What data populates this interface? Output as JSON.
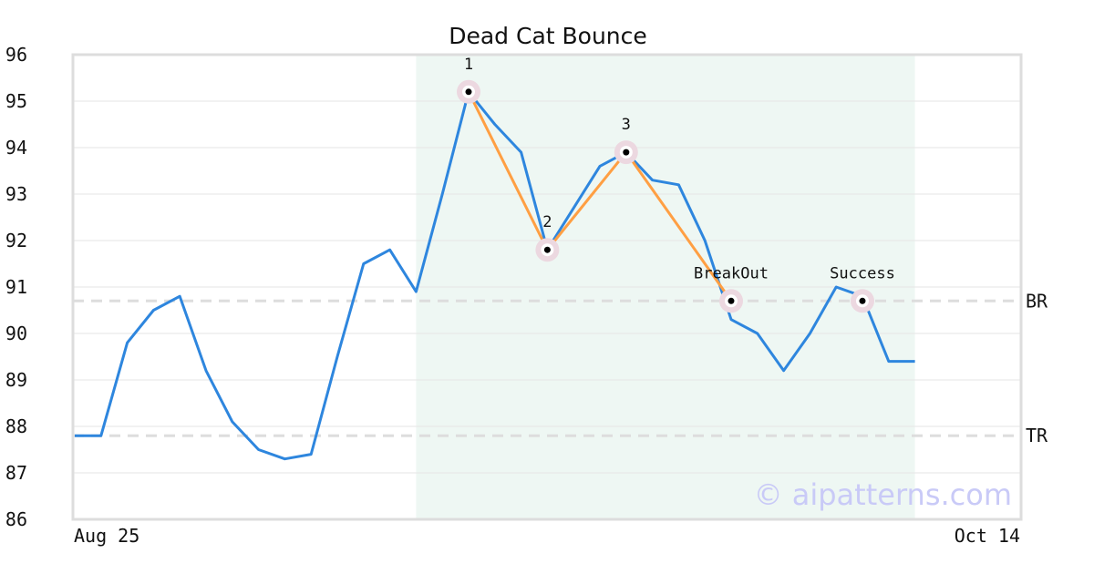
{
  "chart_data": {
    "type": "line",
    "title": "Dead Cat Bounce",
    "xlabel": "",
    "ylabel": "",
    "ylim": [
      86,
      96
    ],
    "y_ticks": [
      "86",
      "87",
      "88",
      "89",
      "90",
      "91",
      "92",
      "93",
      "94",
      "95",
      "96"
    ],
    "x_tick_labels": [
      "Aug 25",
      "Oct 14"
    ],
    "grid": true,
    "series": [
      {
        "color": "#2e86de",
        "values": [
          87.8,
          87.8,
          89.8,
          90.5,
          90.8,
          89.2,
          88.1,
          87.5,
          87.3,
          87.4,
          89.5,
          91.5,
          91.8,
          90.9,
          93.0,
          95.2,
          94.5,
          93.9,
          91.8,
          92.7,
          93.6,
          93.9,
          93.3,
          93.2,
          92.0,
          90.3,
          90.0,
          89.2,
          90.0,
          91.0,
          90.8,
          89.4,
          89.4
        ]
      }
    ],
    "pattern_line": {
      "color": "#ff9f43",
      "points": [
        {
          "index": 15,
          "value": 95.2
        },
        {
          "index": 18,
          "value": 91.8
        },
        {
          "index": 21,
          "value": 93.9
        },
        {
          "index": 25,
          "value": 90.7
        }
      ]
    },
    "markers": [
      {
        "index": 15,
        "value": 95.2,
        "label": "1"
      },
      {
        "index": 18,
        "value": 91.8,
        "label": "2"
      },
      {
        "index": 21,
        "value": 93.9,
        "label": "3"
      },
      {
        "index": 25,
        "value": 90.7,
        "label": "BreakOut"
      },
      {
        "index": 30,
        "value": 90.7,
        "label": "Success"
      }
    ],
    "levels": [
      {
        "label": "BR",
        "value": 90.7
      },
      {
        "label": "TR",
        "value": 87.8
      }
    ],
    "highlight_range": {
      "from_index": 13,
      "to_index": 32,
      "color": "#eef7f3"
    },
    "colors": {
      "line": "#2e86de",
      "pattern": "#ff9f43",
      "marker_halo": "#ecd8e0",
      "levels": "#dddddd",
      "grid": "#e6e6e6",
      "frame": "#dddddd"
    }
  },
  "watermark": "© aipatterns.com"
}
